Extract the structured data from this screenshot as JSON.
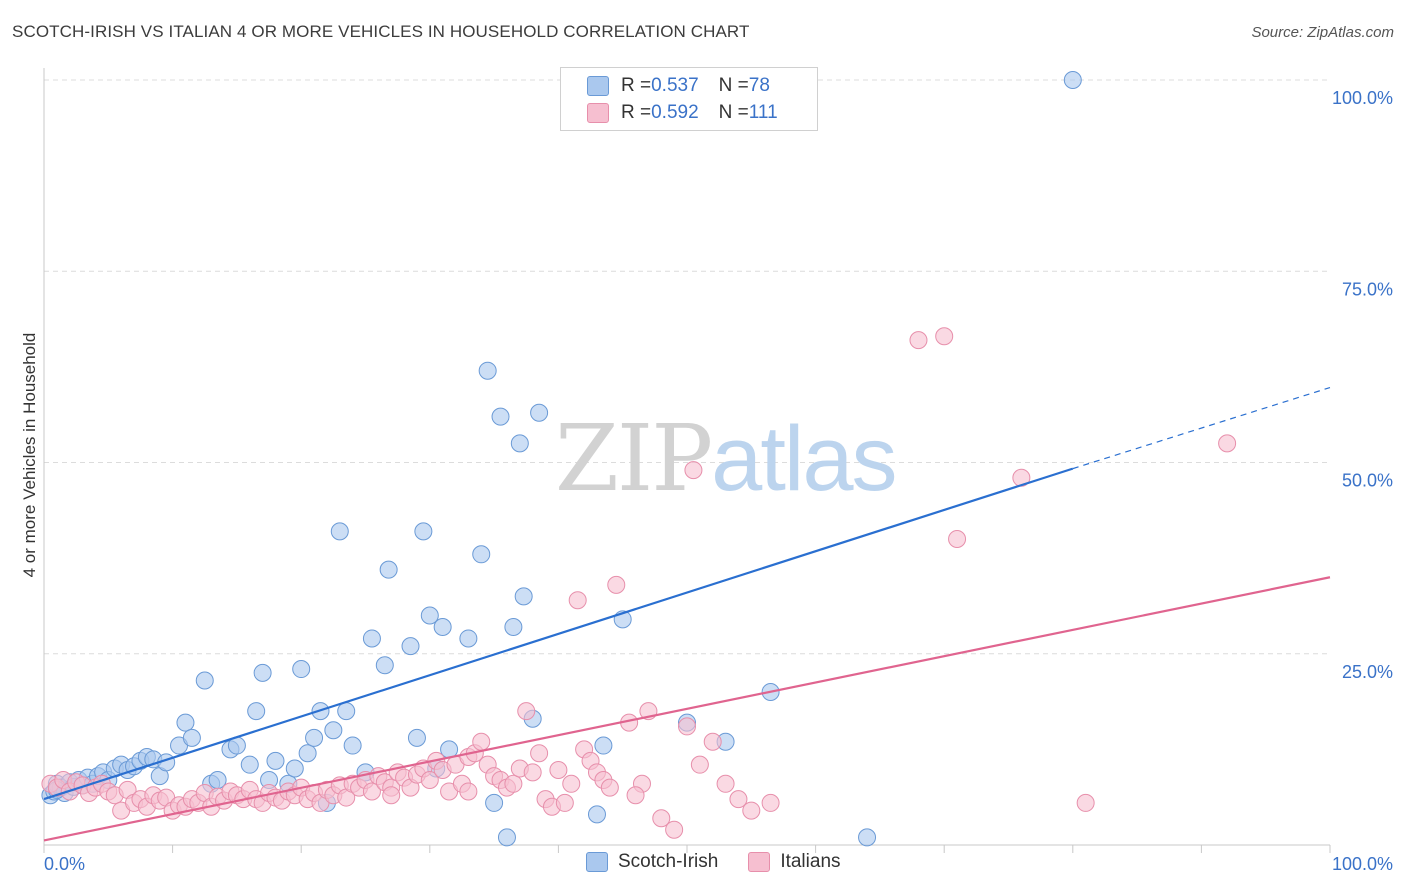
{
  "header": {
    "title": "SCOTCH-IRISH VS ITALIAN 4 OR MORE VEHICLES IN HOUSEHOLD CORRELATION CHART",
    "source": "Source: ZipAtlas.com"
  },
  "watermark": {
    "zip": "ZIP",
    "atlas": "atlas"
  },
  "legend_top": {
    "rows": [
      {
        "r_label": "R = ",
        "r_value": "0.537",
        "n_label": "N = ",
        "n_value": "78"
      },
      {
        "r_label": "R = ",
        "r_value": "0.592",
        "n_label": "N = ",
        "n_value": "111"
      }
    ]
  },
  "legend_bottom": {
    "items": [
      "Scotch-Irish",
      "Italians"
    ]
  },
  "colors": {
    "blue_fill": "#aac8ee",
    "blue_stroke": "#6a9ad6",
    "blue_line": "#2a6fd0",
    "pink_fill": "#f6bfd0",
    "pink_stroke": "#e78fab",
    "pink_line": "#e0648f",
    "tick_label": "#3a72c8",
    "grid": "#dcdcdc"
  },
  "chart_data": {
    "type": "scatter",
    "title": "SCOTCH-IRISH VS ITALIAN 4 OR MORE VEHICLES IN HOUSEHOLD CORRELATION CHART",
    "xlabel": "",
    "ylabel": "4 or more Vehicles in Household",
    "xlim": [
      0,
      100
    ],
    "ylim": [
      0,
      100
    ],
    "x_tick_labels": [
      "0.0%",
      "100.0%"
    ],
    "y_ticks": [
      25,
      50,
      75,
      100
    ],
    "y_tick_labels": [
      "25.0%",
      "50.0%",
      "75.0%",
      "100.0%"
    ],
    "grid": true,
    "legend_position": "top-center",
    "series": [
      {
        "name": "Scotch-Irish",
        "R": 0.537,
        "N": 78,
        "trend": {
          "x": [
            0,
            80
          ],
          "y": [
            6.0,
            49.2
          ],
          "dashed_to": [
            100,
            59.8
          ]
        },
        "points": [
          [
            0.5,
            6.5
          ],
          [
            0.8,
            7.0
          ],
          [
            1.0,
            8.0
          ],
          [
            1.3,
            7.5
          ],
          [
            1.6,
            6.8
          ],
          [
            2.0,
            8.2
          ],
          [
            2.3,
            7.6
          ],
          [
            2.7,
            8.5
          ],
          [
            3.0,
            7.8
          ],
          [
            3.4,
            8.8
          ],
          [
            3.8,
            8.0
          ],
          [
            4.2,
            9.0
          ],
          [
            4.6,
            9.5
          ],
          [
            5.0,
            8.5
          ],
          [
            5.5,
            10.0
          ],
          [
            6.0,
            10.5
          ],
          [
            6.5,
            9.8
          ],
          [
            7.0,
            10.3
          ],
          [
            7.5,
            11.0
          ],
          [
            8.0,
            11.5
          ],
          [
            8.5,
            11.2
          ],
          [
            9.0,
            9.0
          ],
          [
            9.5,
            10.8
          ],
          [
            10.5,
            13.0
          ],
          [
            11.0,
            16.0
          ],
          [
            11.5,
            14.0
          ],
          [
            12.5,
            21.5
          ],
          [
            13.0,
            8.0
          ],
          [
            13.5,
            8.5
          ],
          [
            14.5,
            12.5
          ],
          [
            15.0,
            13.0
          ],
          [
            16.0,
            10.5
          ],
          [
            16.5,
            17.5
          ],
          [
            17.0,
            22.5
          ],
          [
            17.5,
            8.5
          ],
          [
            18.0,
            11.0
          ],
          [
            19.0,
            8.0
          ],
          [
            19.5,
            10.0
          ],
          [
            20.0,
            23.0
          ],
          [
            20.5,
            12.0
          ],
          [
            21.0,
            14.0
          ],
          [
            21.5,
            17.5
          ],
          [
            22.0,
            5.5
          ],
          [
            22.5,
            15.0
          ],
          [
            23.0,
            41.0
          ],
          [
            23.5,
            17.5
          ],
          [
            24.0,
            13.0
          ],
          [
            25.0,
            9.5
          ],
          [
            25.5,
            27.0
          ],
          [
            26.5,
            23.5
          ],
          [
            26.8,
            36.0
          ],
          [
            28.5,
            26.0
          ],
          [
            29.0,
            14.0
          ],
          [
            29.5,
            41.0
          ],
          [
            30.0,
            30.0
          ],
          [
            30.5,
            10.0
          ],
          [
            31.0,
            28.5
          ],
          [
            31.5,
            12.5
          ],
          [
            33.0,
            27.0
          ],
          [
            34.0,
            38.0
          ],
          [
            34.5,
            62.0
          ],
          [
            35.0,
            5.5
          ],
          [
            35.5,
            56.0
          ],
          [
            36.0,
            1.0
          ],
          [
            36.5,
            28.5
          ],
          [
            37.0,
            52.5
          ],
          [
            37.3,
            32.5
          ],
          [
            38.0,
            16.5
          ],
          [
            38.5,
            56.5
          ],
          [
            43.0,
            4.0
          ],
          [
            43.5,
            13.0
          ],
          [
            45.0,
            29.5
          ],
          [
            50.0,
            16.0
          ],
          [
            53.0,
            13.5
          ],
          [
            56.5,
            20.0
          ],
          [
            64.0,
            1.0
          ],
          [
            80.0,
            100.0
          ],
          [
            1.0,
            7.2
          ]
        ]
      },
      {
        "name": "Italians",
        "R": 0.592,
        "N": 111,
        "trend": {
          "x": [
            0,
            100
          ],
          "y": [
            0.6,
            35.0
          ]
        },
        "points": [
          [
            0.5,
            8.0
          ],
          [
            1.0,
            7.5
          ],
          [
            1.5,
            8.5
          ],
          [
            2.0,
            7.0
          ],
          [
            2.5,
            8.2
          ],
          [
            3.0,
            7.8
          ],
          [
            3.5,
            6.8
          ],
          [
            4.0,
            7.5
          ],
          [
            4.5,
            8.0
          ],
          [
            5.0,
            7.0
          ],
          [
            5.5,
            6.5
          ],
          [
            6.0,
            4.5
          ],
          [
            6.5,
            7.2
          ],
          [
            7.0,
            5.5
          ],
          [
            7.5,
            6.0
          ],
          [
            8.0,
            5.0
          ],
          [
            8.5,
            6.5
          ],
          [
            9.0,
            5.8
          ],
          [
            9.5,
            6.2
          ],
          [
            10.0,
            4.5
          ],
          [
            10.5,
            5.2
          ],
          [
            11.0,
            5.0
          ],
          [
            11.5,
            6.0
          ],
          [
            12.0,
            5.5
          ],
          [
            12.5,
            6.8
          ],
          [
            13.0,
            5.0
          ],
          [
            13.5,
            6.3
          ],
          [
            14.0,
            5.8
          ],
          [
            14.5,
            7.0
          ],
          [
            15.0,
            6.5
          ],
          [
            15.5,
            6.0
          ],
          [
            16.0,
            7.2
          ],
          [
            16.5,
            6.0
          ],
          [
            17.0,
            5.5
          ],
          [
            17.5,
            6.8
          ],
          [
            18.0,
            6.2
          ],
          [
            18.5,
            5.8
          ],
          [
            19.0,
            7.0
          ],
          [
            19.5,
            6.5
          ],
          [
            20.0,
            7.5
          ],
          [
            20.5,
            6.0
          ],
          [
            21.0,
            6.8
          ],
          [
            21.5,
            5.5
          ],
          [
            22.0,
            7.2
          ],
          [
            22.5,
            6.5
          ],
          [
            23.0,
            7.8
          ],
          [
            23.5,
            6.2
          ],
          [
            24.0,
            8.0
          ],
          [
            24.5,
            7.5
          ],
          [
            25.0,
            8.5
          ],
          [
            25.5,
            7.0
          ],
          [
            26.0,
            9.0
          ],
          [
            26.5,
            8.2
          ],
          [
            27.0,
            7.5
          ],
          [
            27.5,
            9.5
          ],
          [
            28.0,
            8.8
          ],
          [
            28.5,
            7.5
          ],
          [
            29.0,
            9.2
          ],
          [
            29.5,
            10.0
          ],
          [
            30.0,
            8.5
          ],
          [
            30.5,
            11.0
          ],
          [
            31.0,
            9.8
          ],
          [
            31.5,
            7.0
          ],
          [
            32.0,
            10.5
          ],
          [
            32.5,
            8.0
          ],
          [
            33.0,
            11.5
          ],
          [
            33.5,
            12.0
          ],
          [
            34.0,
            13.5
          ],
          [
            34.5,
            10.5
          ],
          [
            35.0,
            9.0
          ],
          [
            35.5,
            8.5
          ],
          [
            36.0,
            7.5
          ],
          [
            36.5,
            8.0
          ],
          [
            37.0,
            10.0
          ],
          [
            37.5,
            17.5
          ],
          [
            38.0,
            9.5
          ],
          [
            38.5,
            12.0
          ],
          [
            39.0,
            6.0
          ],
          [
            39.5,
            5.0
          ],
          [
            40.0,
            9.8
          ],
          [
            41.0,
            8.0
          ],
          [
            41.5,
            32.0
          ],
          [
            42.0,
            12.5
          ],
          [
            42.5,
            11.0
          ],
          [
            43.0,
            9.5
          ],
          [
            43.5,
            8.5
          ],
          [
            44.0,
            7.5
          ],
          [
            44.5,
            34.0
          ],
          [
            45.5,
            16.0
          ],
          [
            46.5,
            8.0
          ],
          [
            47.0,
            17.5
          ],
          [
            48.0,
            3.5
          ],
          [
            49.0,
            2.0
          ],
          [
            50.0,
            15.5
          ],
          [
            50.5,
            49.0
          ],
          [
            51.0,
            10.5
          ],
          [
            52.0,
            13.5
          ],
          [
            53.0,
            8.0
          ],
          [
            54.0,
            6.0
          ],
          [
            55.0,
            4.5
          ],
          [
            56.5,
            5.5
          ],
          [
            68.0,
            66.0
          ],
          [
            70.0,
            66.5
          ],
          [
            71.0,
            40.0
          ],
          [
            76.0,
            48.0
          ],
          [
            81.0,
            5.5
          ],
          [
            92.0,
            52.5
          ],
          [
            46.0,
            6.5
          ],
          [
            40.5,
            5.5
          ],
          [
            27.0,
            6.5
          ],
          [
            33.0,
            7.0
          ]
        ]
      }
    ]
  }
}
